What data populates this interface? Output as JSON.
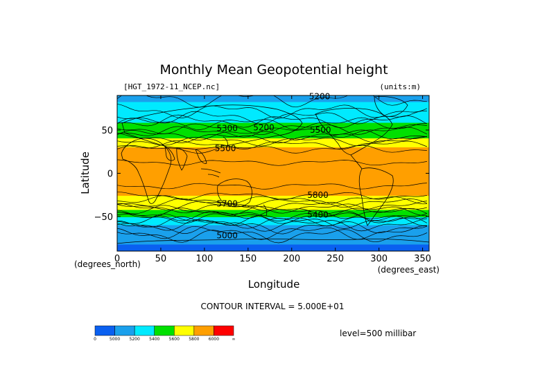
{
  "chart_data": {
    "type": "heatmap",
    "title": "Monthly Mean Geopotential height",
    "source_label": "[HGT_1972-11_NCEP.nc]",
    "units_label": "(units:m)",
    "xlabel": "Longitude",
    "ylabel": "Latitude",
    "x_unit_label": "(degrees_east)",
    "y_unit_label": "(degrees_north)",
    "xlim": [
      0,
      357.5
    ],
    "ylim": [
      -90,
      90
    ],
    "x_ticks": [
      "0",
      "50",
      "100",
      "150",
      "200",
      "250",
      "300",
      "350"
    ],
    "x_tick_values": [
      0,
      50,
      100,
      150,
      200,
      250,
      300,
      350
    ],
    "y_ticks": [
      "50",
      "0",
      "−50"
    ],
    "y_tick_values": [
      50,
      0,
      -50
    ],
    "contour_interval_text": "CONTOUR INTERVAL = 5.000E+01",
    "level_text": "level=500 millibar",
    "color_bins": [
      {
        "lower": "0",
        "color": "#0a60f0"
      },
      {
        "lower": "5000",
        "color": "#1aa0ec"
      },
      {
        "lower": "5200",
        "color": "#00eaff"
      },
      {
        "lower": "5400",
        "color": "#00e000"
      },
      {
        "lower": "5600",
        "color": "#ffff00"
      },
      {
        "lower": "5800",
        "color": "#ff9f00"
      },
      {
        "lower": "6000",
        "color": "#ff0000"
      }
    ],
    "colorbar_labels": [
      "0",
      "5000",
      "5200",
      "5400",
      "5600",
      "5800",
      "6000",
      "∞"
    ],
    "latitude_profile": [
      {
        "lat": 90,
        "value": 5190
      },
      {
        "lat": 75,
        "value": 5230
      },
      {
        "lat": 62,
        "value": 5320
      },
      {
        "lat": 55,
        "value": 5450
      },
      {
        "lat": 46,
        "value": 5580
      },
      {
        "lat": 35,
        "value": 5730
      },
      {
        "lat": 25,
        "value": 5830
      },
      {
        "lat": 0,
        "value": 5870
      },
      {
        "lat": -22,
        "value": 5840
      },
      {
        "lat": -30,
        "value": 5760
      },
      {
        "lat": -38,
        "value": 5640
      },
      {
        "lat": -47,
        "value": 5480
      },
      {
        "lat": -55,
        "value": 5330
      },
      {
        "lat": -65,
        "value": 5150
      },
      {
        "lat": -75,
        "value": 5000
      },
      {
        "lat": -90,
        "value": 4960
      }
    ],
    "contour_labels": [
      {
        "text": "5200",
        "lon": 232,
        "lat": 89
      },
      {
        "text": "5300",
        "lon": 126,
        "lat": 52
      },
      {
        "text": "5200",
        "lon": 168,
        "lat": 53
      },
      {
        "text": "5500",
        "lon": 233,
        "lat": 50
      },
      {
        "text": "5500",
        "lon": 124,
        "lat": 29
      },
      {
        "text": "5800",
        "lon": 230,
        "lat": -25
      },
      {
        "text": "5700",
        "lon": 126,
        "lat": -35
      },
      {
        "text": "5400",
        "lon": 230,
        "lat": -48
      },
      {
        "text": "5000",
        "lon": 126,
        "lat": -72
      }
    ]
  }
}
